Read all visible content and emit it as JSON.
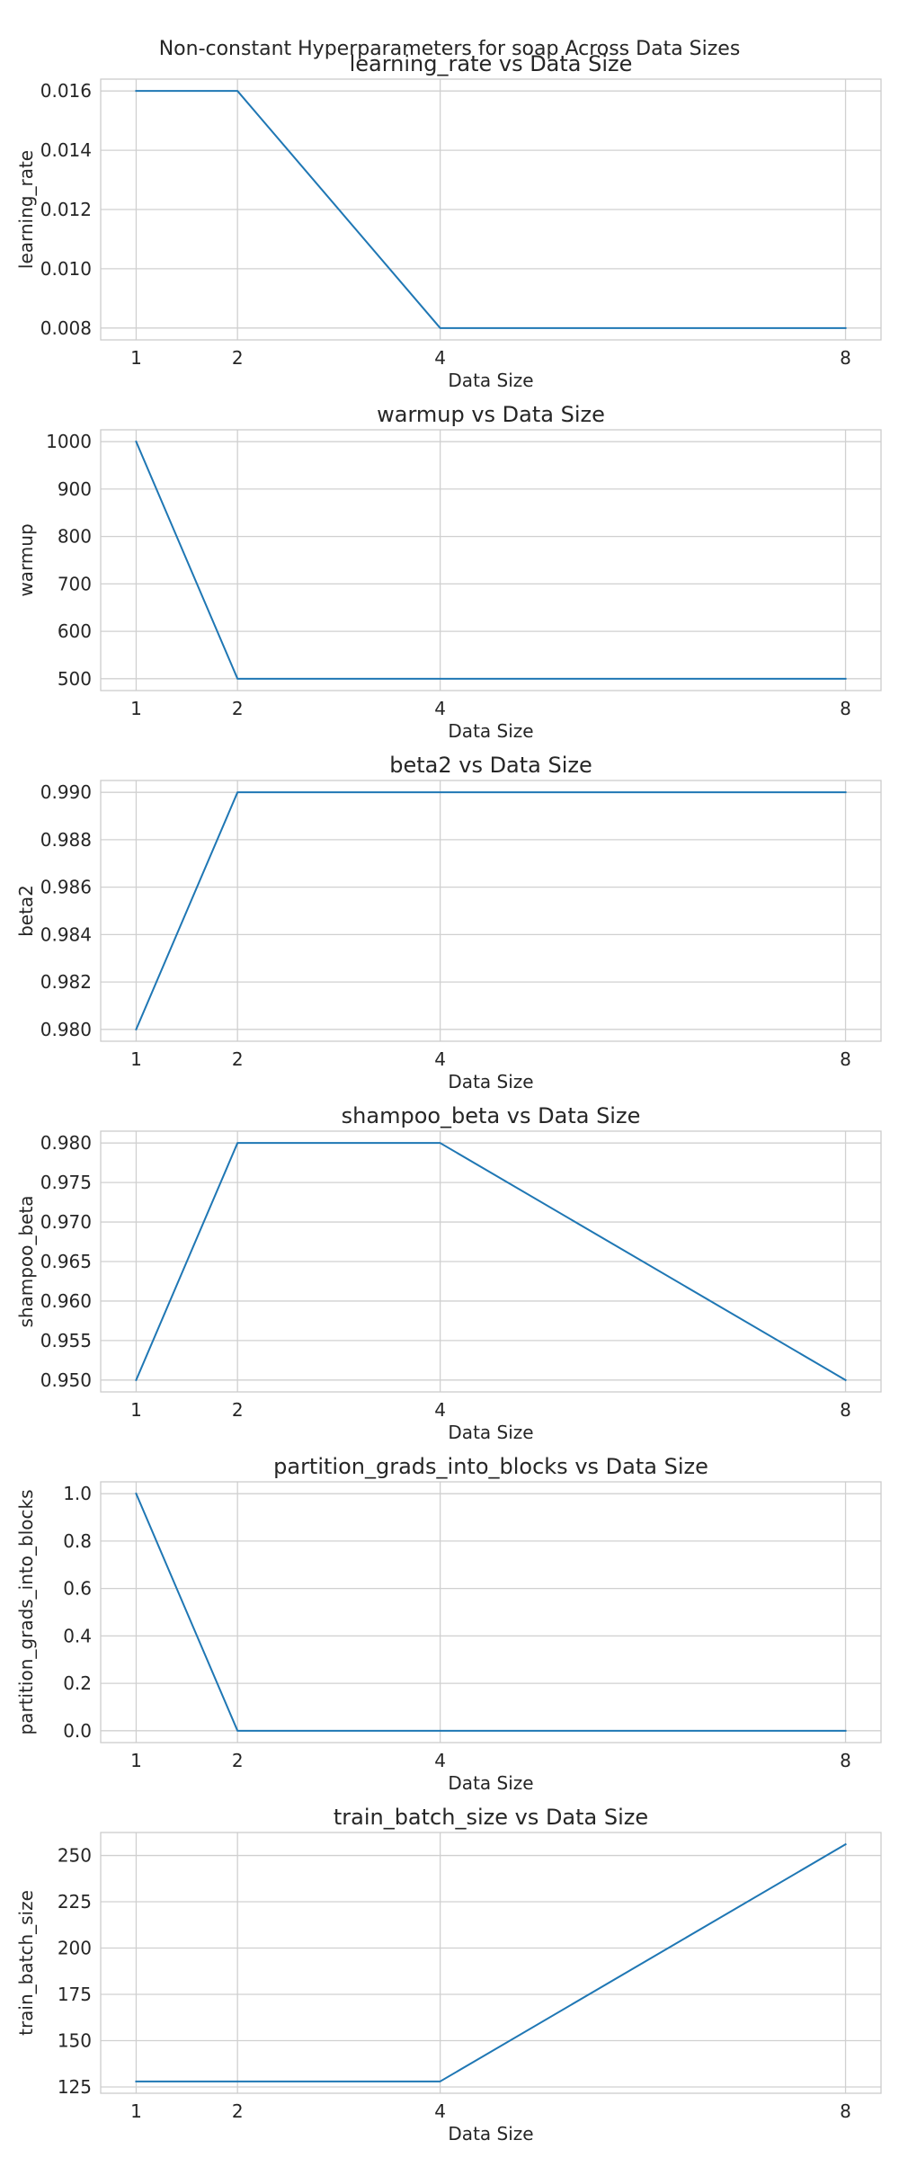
{
  "figure": {
    "title": "Non-constant Hyperparameters for soap Across Data Sizes"
  },
  "colors": {
    "line": "#1f77b4",
    "grid": "#d0d0d0",
    "spine": "#cccccc",
    "text": "#262626",
    "background": "#ffffff"
  },
  "chart_data": [
    {
      "type": "line",
      "title": "learning_rate vs Data Size",
      "xlabel": "Data Size",
      "ylabel": "learning_rate",
      "x": [
        1,
        2,
        4,
        8
      ],
      "series": [
        {
          "values": [
            0.016,
            0.016,
            0.008,
            0.008
          ]
        }
      ],
      "xticks": [
        1,
        2,
        4,
        8
      ],
      "yticks": [
        "0.008",
        "0.010",
        "0.012",
        "0.014",
        "0.016"
      ],
      "xlim": [
        0.65,
        8.35
      ],
      "ylim": [
        0.0076,
        0.0164
      ],
      "grid": true
    },
    {
      "type": "line",
      "title": "warmup vs Data Size",
      "xlabel": "Data Size",
      "ylabel": "warmup",
      "x": [
        1,
        2,
        4,
        8
      ],
      "series": [
        {
          "values": [
            1000,
            500,
            500,
            500
          ]
        }
      ],
      "xticks": [
        1,
        2,
        4,
        8
      ],
      "yticks": [
        "500",
        "600",
        "700",
        "800",
        "900",
        "1000"
      ],
      "xlim": [
        0.65,
        8.35
      ],
      "ylim": [
        475,
        1025
      ],
      "grid": true
    },
    {
      "type": "line",
      "title": "beta2 vs Data Size",
      "xlabel": "Data Size",
      "ylabel": "beta2",
      "x": [
        1,
        2,
        4,
        8
      ],
      "series": [
        {
          "values": [
            0.98,
            0.99,
            0.99,
            0.99
          ]
        }
      ],
      "xticks": [
        1,
        2,
        4,
        8
      ],
      "yticks": [
        "0.980",
        "0.982",
        "0.984",
        "0.986",
        "0.988",
        "0.990"
      ],
      "xlim": [
        0.65,
        8.35
      ],
      "ylim": [
        0.9795,
        0.9905
      ],
      "grid": true
    },
    {
      "type": "line",
      "title": "shampoo_beta vs Data Size",
      "xlabel": "Data Size",
      "ylabel": "shampoo_beta",
      "x": [
        1,
        2,
        4,
        8
      ],
      "series": [
        {
          "values": [
            0.95,
            0.98,
            0.98,
            0.95
          ]
        }
      ],
      "xticks": [
        1,
        2,
        4,
        8
      ],
      "yticks": [
        "0.950",
        "0.955",
        "0.960",
        "0.965",
        "0.970",
        "0.975",
        "0.980"
      ],
      "xlim": [
        0.65,
        8.35
      ],
      "ylim": [
        0.9485,
        0.9815
      ],
      "grid": true
    },
    {
      "type": "line",
      "title": "partition_grads_into_blocks vs Data Size",
      "xlabel": "Data Size",
      "ylabel": "partition_grads_into_blocks",
      "x": [
        1,
        2,
        4,
        8
      ],
      "series": [
        {
          "values": [
            1,
            0,
            0,
            0
          ]
        }
      ],
      "xticks": [
        1,
        2,
        4,
        8
      ],
      "yticks": [
        "0.0",
        "0.2",
        "0.4",
        "0.6",
        "0.8",
        "1.0"
      ],
      "xlim": [
        0.65,
        8.35
      ],
      "ylim": [
        -0.05,
        1.05
      ],
      "grid": true
    },
    {
      "type": "line",
      "title": "train_batch_size vs Data Size",
      "xlabel": "Data Size",
      "ylabel": "train_batch_size",
      "x": [
        1,
        2,
        4,
        8
      ],
      "series": [
        {
          "values": [
            128,
            128,
            128,
            256
          ]
        }
      ],
      "xticks": [
        1,
        2,
        4,
        8
      ],
      "yticks": [
        "125",
        "150",
        "175",
        "200",
        "225",
        "250"
      ],
      "xlim": [
        0.65,
        8.35
      ],
      "ylim": [
        121.6,
        262.4
      ],
      "grid": true
    }
  ]
}
